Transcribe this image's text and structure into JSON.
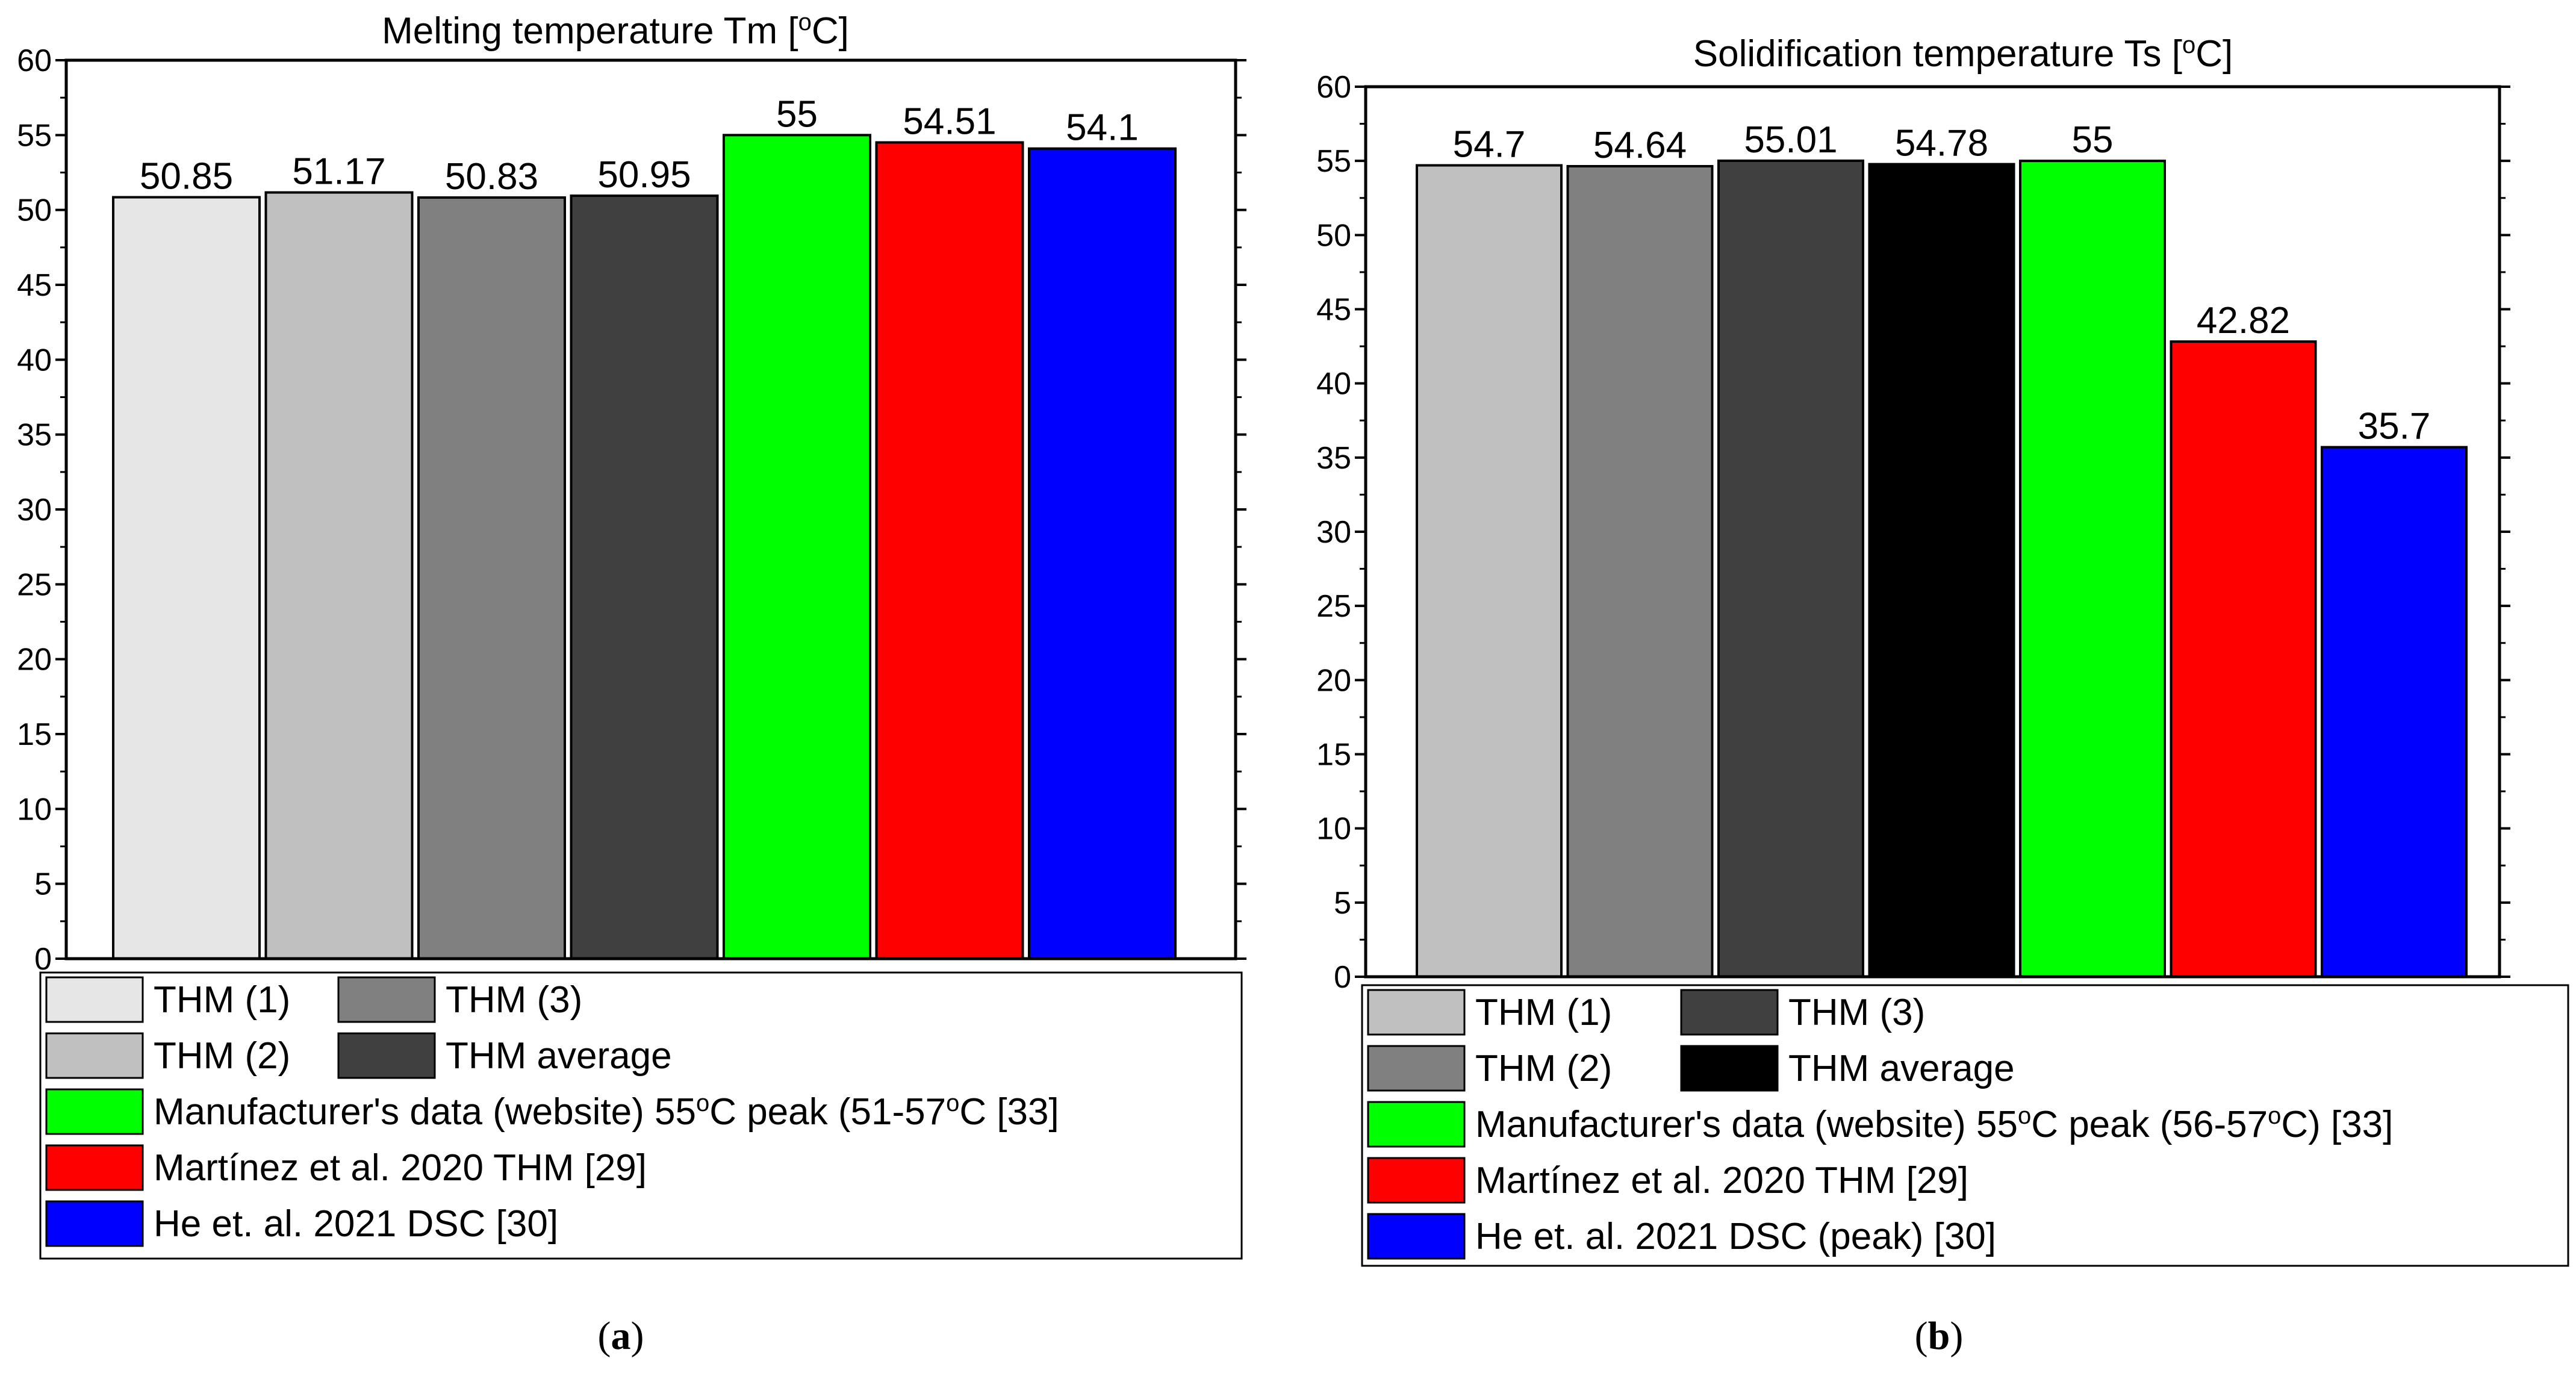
{
  "chart_data": [
    {
      "type": "bar",
      "panel_label": "a",
      "title": "Melting temperature Tm [°C]",
      "title_parts": {
        "before": "Melting temperature Tm [",
        "sup": "o",
        "after": "C]"
      },
      "xlabel": "",
      "ylabel": "",
      "ylim": [
        0,
        60
      ],
      "yticks": [
        0,
        5,
        10,
        15,
        20,
        25,
        30,
        35,
        40,
        45,
        50,
        55,
        60
      ],
      "grid": false,
      "legend_position": "bottom",
      "bars": [
        {
          "name": "THM (1)",
          "value": 50.85,
          "label": "50.85",
          "color": "#e6e6e6"
        },
        {
          "name": "THM (2)",
          "value": 51.17,
          "label": "51.17",
          "color": "#c0c0c0"
        },
        {
          "name": "THM (3)",
          "value": 50.83,
          "label": "50.83",
          "color": "#808080"
        },
        {
          "name": "THM average",
          "value": 50.95,
          "label": "50.95",
          "color": "#404040"
        },
        {
          "name": "Manufacturer's data (website) 55°C peak (51-57°C [33]",
          "value": 55,
          "label": "55",
          "color": "#00ff00"
        },
        {
          "name": "Martínez et al. 2020 THM [29]",
          "value": 54.51,
          "label": "54.51",
          "color": "#ff0000"
        },
        {
          "name": "He et. al. 2021 DSC [30]",
          "value": 54.1,
          "label": "54.1",
          "color": "#0000ff"
        }
      ],
      "legend": {
        "pair_rows": [
          [
            {
              "text": "THM (1)",
              "color": "#e6e6e6"
            },
            {
              "text": "THM (3)",
              "color": "#808080"
            }
          ],
          [
            {
              "text": "THM (2)",
              "color": "#c0c0c0"
            },
            {
              "text": "THM average",
              "color": "#404040"
            }
          ]
        ],
        "manufacturer": {
          "color": "#00ff00",
          "parts": [
            "Manufacturer's data (website) 55",
            "o",
            "C peak (51-57",
            "o",
            "C [33]"
          ]
        },
        "rows": [
          {
            "text": "Martínez et al. 2020 THM [29]",
            "color": "#ff0000"
          },
          {
            "text": "He et. al. 2021 DSC [30]",
            "color": "#0000ff"
          }
        ]
      }
    },
    {
      "type": "bar",
      "panel_label": "b",
      "title": "Solidification temperature Ts [°C]",
      "title_parts": {
        "before": "Solidification temperature Ts [",
        "sup": "o",
        "after": "C]"
      },
      "xlabel": "",
      "ylabel": "",
      "ylim": [
        0,
        60
      ],
      "yticks": [
        0,
        5,
        10,
        15,
        20,
        25,
        30,
        35,
        40,
        45,
        50,
        55,
        60
      ],
      "grid": false,
      "legend_position": "bottom",
      "bars": [
        {
          "name": "THM (1)",
          "value": 54.7,
          "label": "54.7",
          "color": "#c0c0c0"
        },
        {
          "name": "THM (2)",
          "value": 54.64,
          "label": "54.64",
          "color": "#808080"
        },
        {
          "name": "THM (3)",
          "value": 55.01,
          "label": "55.01",
          "color": "#404040"
        },
        {
          "name": "THM average",
          "value": 54.78,
          "label": "54.78",
          "color": "#000000"
        },
        {
          "name": "Manufacturer's data (website) 55°C peak (56-57°C) [33]",
          "value": 55,
          "label": "55",
          "color": "#00ff00"
        },
        {
          "name": "Martínez et al. 2020 THM [29]",
          "value": 42.82,
          "label": "42.82",
          "color": "#ff0000"
        },
        {
          "name": "He et. al. 2021 DSC (peak) [30]",
          "value": 35.7,
          "label": "35.7",
          "color": "#0000ff"
        }
      ],
      "legend": {
        "pair_rows": [
          [
            {
              "text": "THM (1)",
              "color": "#c0c0c0"
            },
            {
              "text": "THM (3)",
              "color": "#404040"
            }
          ],
          [
            {
              "text": "THM (2)",
              "color": "#808080"
            },
            {
              "text": "THM average",
              "color": "#000000"
            }
          ]
        ],
        "manufacturer": {
          "color": "#00ff00",
          "parts": [
            "Manufacturer's data (website) 55",
            "o",
            "C peak (56-57",
            "o",
            "C) [33]"
          ]
        },
        "rows": [
          {
            "text": "Martínez et al. 2020 THM [29]",
            "color": "#ff0000"
          },
          {
            "text": "He et. al. 2021 DSC (peak) [30]",
            "color": "#0000ff"
          }
        ]
      }
    }
  ]
}
